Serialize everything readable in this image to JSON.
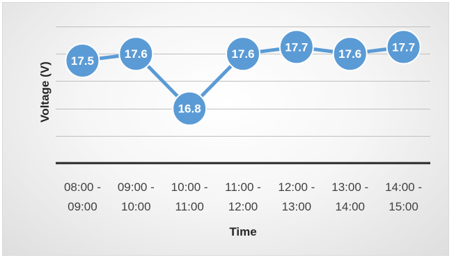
{
  "chart_data": {
    "type": "line",
    "title": "",
    "xlabel": "Time",
    "ylabel": "Voltage (V)",
    "categories": [
      [
        "08:00 -",
        "09:00"
      ],
      [
        "09:00 -",
        "10:00"
      ],
      [
        "10:00 -",
        "11:00"
      ],
      [
        "11:00 -",
        "12:00"
      ],
      [
        "12:00 -",
        "13:00"
      ],
      [
        "13:00 -",
        "14:00"
      ],
      [
        "14:00 -",
        "15:00"
      ]
    ],
    "series": [
      {
        "values": [
          17.5,
          17.6,
          16.8,
          17.6,
          17.7,
          17.6,
          17.7
        ]
      }
    ],
    "data_labels": [
      "17.5",
      "17.6",
      "16.8",
      "17.6",
      "17.7",
      "17.6",
      "17.7"
    ],
    "ylim": [
      16.0,
      18.0
    ],
    "y_gridlines": [
      16.4,
      16.8,
      17.2,
      17.6,
      18.0
    ],
    "y_tick_labels_visible": false,
    "grid": true,
    "legend": "none",
    "colors": {
      "series": "#5b9bd5",
      "label_text": "#ffffff",
      "baseline": "#262626",
      "grid": "#bfbfbf"
    }
  }
}
